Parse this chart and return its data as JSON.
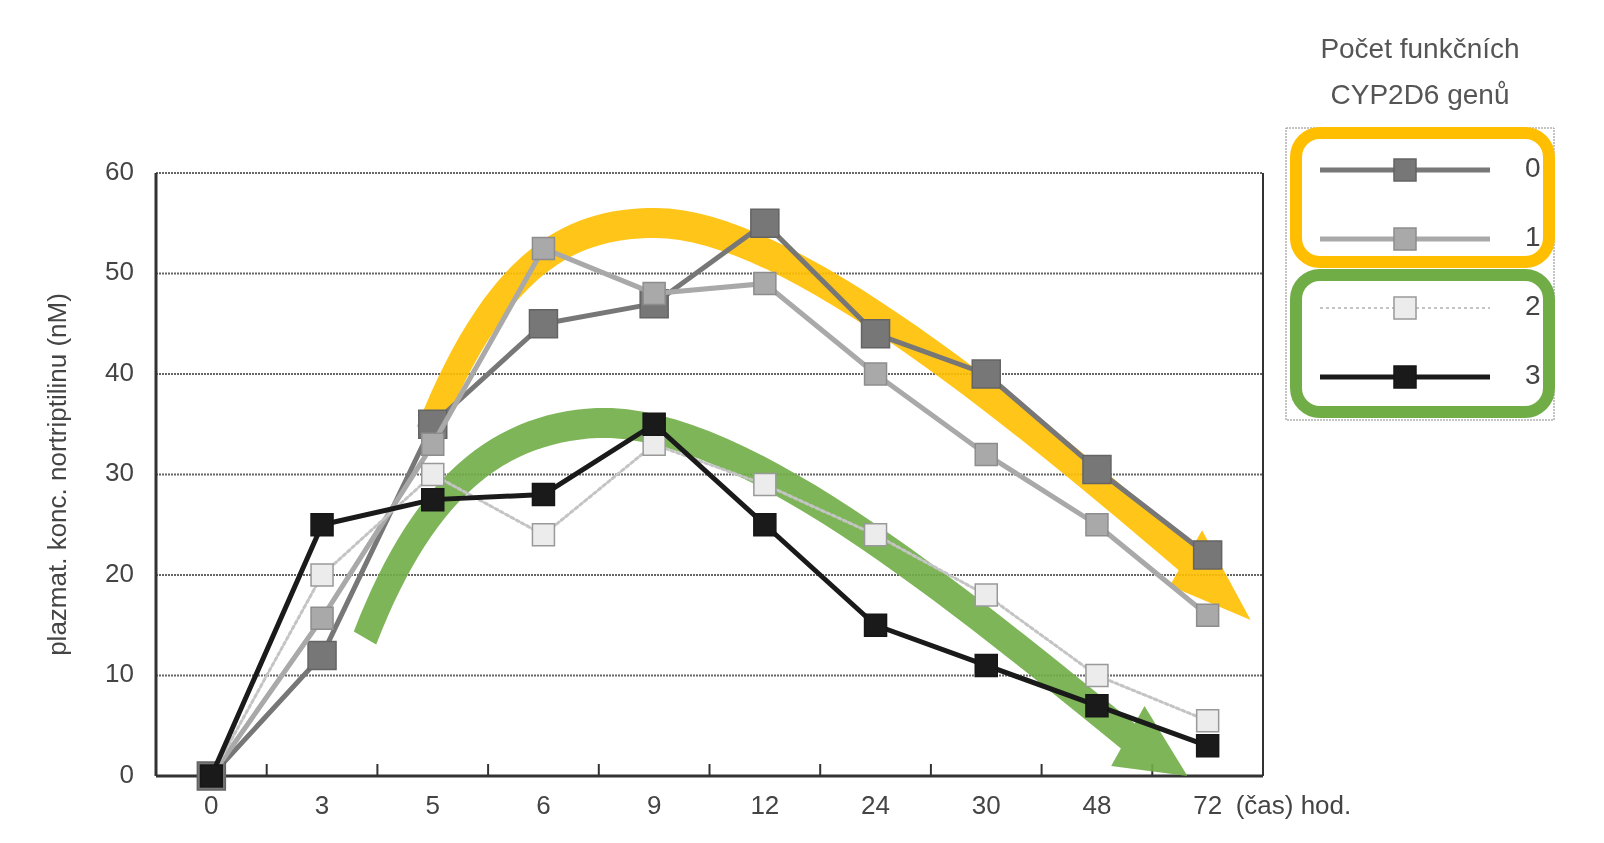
{
  "chart_data": {
    "type": "line",
    "ylabel": "plazmat. konc. nortriptilinu (nM)",
    "xlabel": "(čas) hod.",
    "legend_title": "Počet funkčních CYP2D6 genů",
    "categories": [
      "0",
      "3",
      "5",
      "6",
      "9",
      "12",
      "24",
      "30",
      "48",
      "72"
    ],
    "series": [
      {
        "name": "0",
        "color": "#777777",
        "line_style": "solid",
        "values": [
          0,
          12,
          35,
          45,
          47,
          55,
          44,
          40,
          30.5,
          22
        ]
      },
      {
        "name": "1",
        "color": "#a9a9a9",
        "line_style": "solid",
        "values": [
          0,
          15.7,
          33,
          52.5,
          48,
          49,
          40,
          32,
          25,
          16
        ]
      },
      {
        "name": "2",
        "color": "#c4c4c4",
        "line_style": "dotted",
        "values": [
          0,
          20,
          30,
          24,
          33,
          29,
          24,
          18,
          10,
          5.5
        ]
      },
      {
        "name": "3",
        "color": "#1a1a1a",
        "line_style": "solid",
        "values": [
          0,
          25,
          27.5,
          28,
          35,
          25,
          15,
          11,
          7,
          3
        ]
      }
    ],
    "ylim": [
      0,
      60
    ],
    "yticks": [
      0,
      10,
      20,
      30,
      40,
      50,
      60
    ],
    "grid": "y",
    "legend": "top right",
    "marker": "square"
  }
}
